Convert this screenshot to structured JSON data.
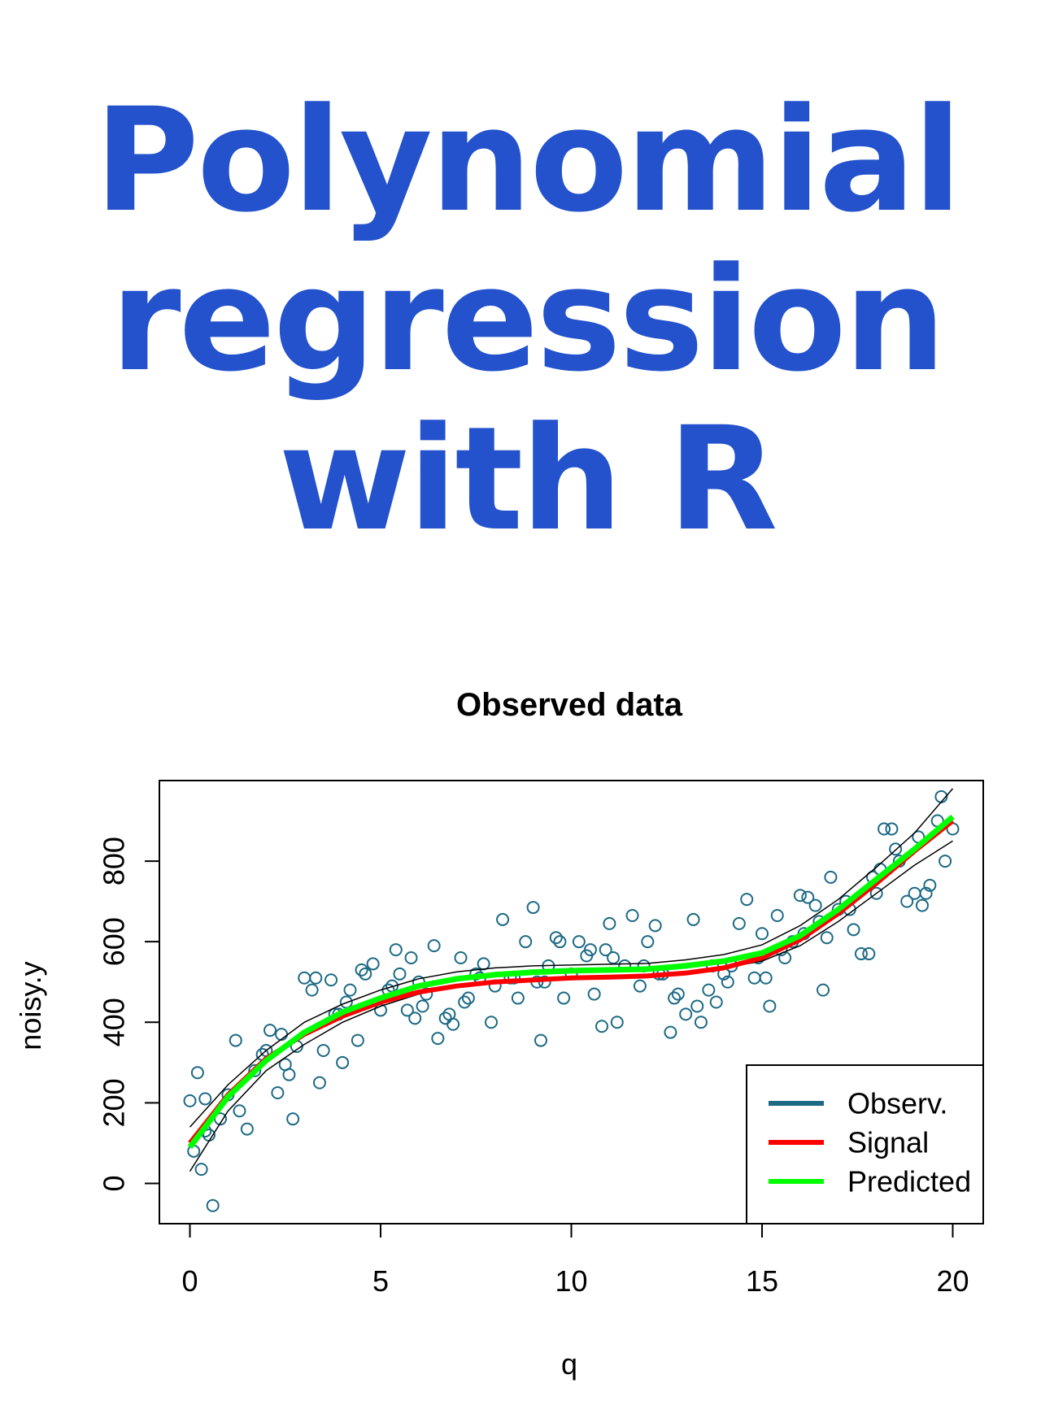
{
  "headline": {
    "lines": [
      "Polynomial",
      "regression",
      "with R"
    ],
    "color": "#2352cc"
  },
  "chart_data": {
    "type": "scatter",
    "title": "Observed data",
    "xlabel": "q",
    "ylabel": "noisy.y",
    "xlim": [
      0,
      20
    ],
    "ylim": [
      -100,
      1000
    ],
    "x_ticks": [
      0,
      5,
      10,
      15,
      20
    ],
    "y_ticks": [
      0,
      200,
      400,
      600,
      800
    ],
    "grid": false,
    "legend": {
      "placement": "bottom-right",
      "entries": [
        {
          "label": "Observ.",
          "color": "#1d6a85"
        },
        {
          "label": "Signal",
          "color": "#ff0000"
        },
        {
          "label": "Predicted",
          "color": "#00ff00"
        }
      ]
    },
    "points": {
      "x": [
        0.0,
        0.2,
        0.3,
        0.4,
        0.6,
        0.8,
        1.0,
        1.2,
        1.5,
        1.7,
        1.9,
        2.1,
        2.3,
        2.5,
        2.7,
        2.8,
        3.0,
        3.2,
        3.4,
        3.5,
        3.7,
        3.9,
        4.0,
        4.2,
        4.4,
        4.6,
        4.8,
        5.0,
        5.2,
        5.4,
        5.5,
        5.7,
        5.9,
        6.0,
        6.2,
        6.4,
        6.5,
        6.7,
        6.9,
        7.1,
        7.3,
        7.5,
        7.7,
        7.9,
        8.0,
        8.2,
        8.4,
        8.6,
        8.8,
        9.0,
        9.2,
        9.4,
        9.6,
        9.8,
        10.0,
        10.2,
        10.4,
        10.6,
        10.8,
        11.0,
        11.2,
        11.4,
        11.6,
        11.8,
        12.0,
        12.2,
        12.4,
        12.6,
        12.8,
        13.0,
        13.2,
        13.4,
        13.6,
        13.8,
        14.0,
        14.2,
        14.4,
        14.6,
        14.8,
        15.0,
        15.2,
        15.4,
        15.6,
        15.8,
        16.0,
        16.2,
        16.4,
        16.6,
        16.8,
        17.0,
        17.2,
        17.4,
        17.6,
        17.8,
        18.0,
        18.2,
        18.4,
        18.6,
        18.8,
        19.0,
        19.2,
        19.4,
        19.6,
        19.8,
        20.0,
        0.1,
        0.5,
        1.3,
        2.0,
        2.6,
        3.3,
        3.8,
        4.5,
        5.3,
        6.1,
        6.8,
        7.6,
        8.5,
        9.1,
        9.7,
        10.5,
        11.1,
        11.9,
        12.7,
        13.3,
        14.1,
        14.9,
        15.5,
        16.1,
        16.7,
        17.3,
        17.9,
        18.5,
        19.1,
        19.7,
        0.4,
        2.4,
        4.1,
        5.8,
        7.2,
        9.3,
        10.9,
        12.3,
        13.7,
        15.1,
        16.5,
        18.1,
        19.3
      ],
      "y": [
        205,
        275,
        35,
        210,
        -55,
        160,
        220,
        355,
        135,
        280,
        320,
        380,
        225,
        295,
        160,
        340,
        510,
        480,
        250,
        330,
        505,
        420,
        300,
        480,
        355,
        520,
        545,
        430,
        480,
        580,
        520,
        430,
        410,
        500,
        470,
        590,
        360,
        410,
        395,
        560,
        460,
        520,
        545,
        400,
        490,
        655,
        510,
        460,
        600,
        685,
        355,
        540,
        610,
        460,
        520,
        600,
        565,
        470,
        390,
        645,
        400,
        540,
        665,
        490,
        600,
        640,
        520,
        375,
        470,
        420,
        655,
        400,
        480,
        450,
        520,
        540,
        645,
        705,
        510,
        620,
        440,
        665,
        560,
        600,
        715,
        710,
        690,
        480,
        760,
        680,
        700,
        630,
        570,
        570,
        720,
        880,
        880,
        800,
        700,
        720,
        690,
        740,
        900,
        800,
        880,
        80,
        120,
        180,
        330,
        270,
        510,
        420,
        530,
        490,
        440,
        420,
        510,
        510,
        500,
        600,
        580,
        560,
        540,
        460,
        440,
        500,
        560,
        580,
        620,
        610,
        680,
        760,
        830,
        860,
        960,
        130,
        370,
        450,
        560,
        450,
        500,
        580,
        520,
        540,
        510,
        650,
        780,
        720
      ]
    },
    "series": [
      {
        "name": "Signal",
        "x": [
          0,
          1,
          2,
          3,
          4,
          5,
          6,
          7,
          8,
          9,
          10,
          11,
          12,
          13,
          14,
          15,
          16,
          17,
          18,
          19,
          20
        ],
        "y": [
          100,
          220,
          310,
          370,
          415,
          450,
          475,
          490,
          500,
          505,
          510,
          512,
          515,
          522,
          535,
          560,
          605,
          670,
          745,
          825,
          900
        ]
      },
      {
        "name": "Predicted",
        "x": [
          0,
          1,
          2,
          3,
          4,
          5,
          6,
          7,
          8,
          9,
          10,
          11,
          12,
          13,
          14,
          15,
          16,
          17,
          18,
          19,
          20
        ],
        "y": [
          90,
          215,
          305,
          375,
          425,
          460,
          490,
          508,
          518,
          524,
          528,
          530,
          532,
          540,
          552,
          572,
          615,
          680,
          755,
          830,
          910
        ]
      }
    ],
    "confidence_band": {
      "x": [
        0,
        1,
        2,
        3,
        4,
        5,
        6,
        7,
        8,
        9,
        10,
        11,
        12,
        13,
        14,
        15,
        16,
        17,
        18,
        19,
        20
      ],
      "upper": [
        140,
        245,
        330,
        400,
        445,
        480,
        508,
        525,
        535,
        540,
        542,
        544,
        546,
        555,
        568,
        592,
        640,
        705,
        785,
        870,
        980
      ],
      "lower": [
        30,
        180,
        280,
        345,
        400,
        440,
        470,
        490,
        500,
        506,
        512,
        514,
        516,
        523,
        535,
        552,
        590,
        650,
        720,
        790,
        850
      ]
    },
    "colors": {
      "points": "#1d6a85",
      "signal": "#ff0000",
      "predicted": "#00ff00",
      "band": "#000000"
    }
  }
}
